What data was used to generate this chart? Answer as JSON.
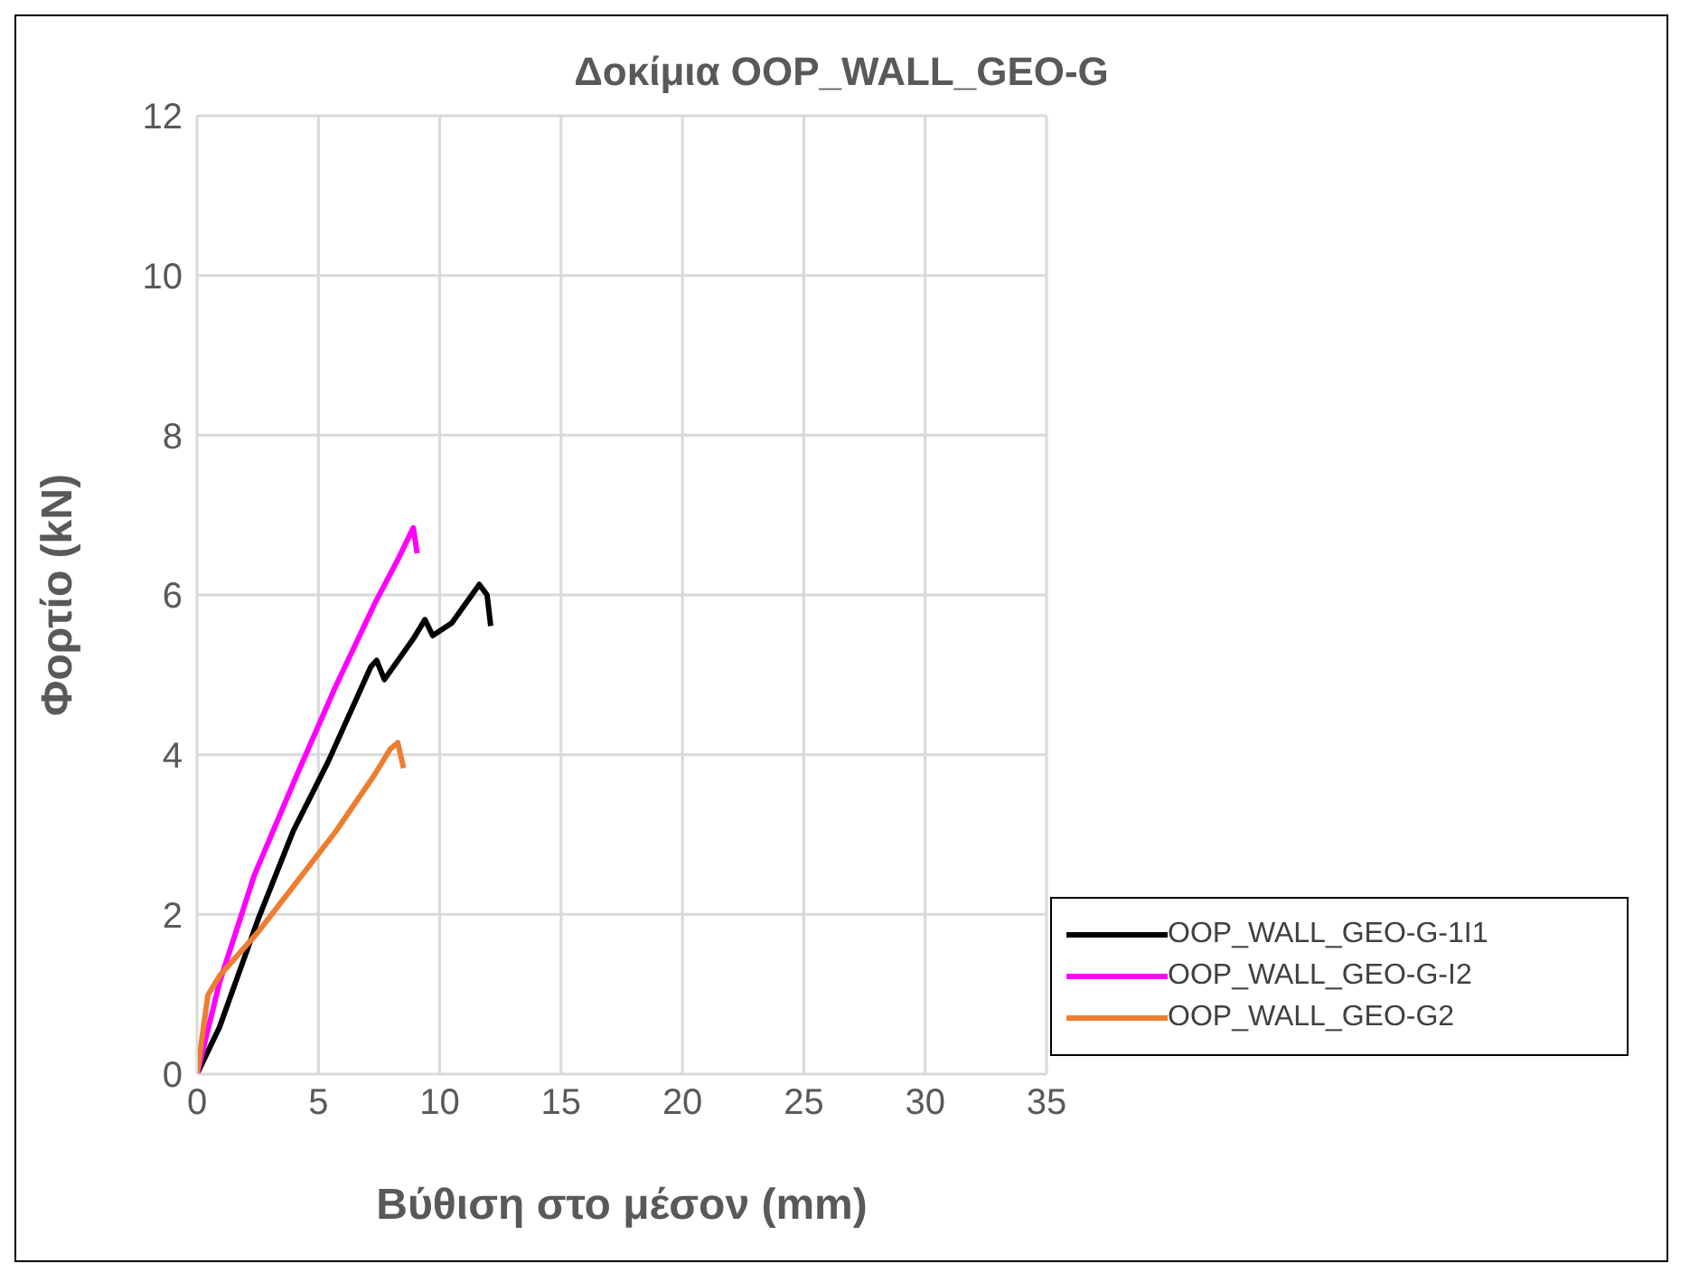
{
  "chart_data": {
    "type": "line",
    "title": "Δοκίμια OOP_WALL_GEO-G",
    "xlabel": "Βύθιση στο μέσον (mm)",
    "ylabel": "Φορτίο (kN)",
    "xlim": [
      0,
      35
    ],
    "xticks": [
      0,
      5,
      10,
      15,
      20,
      25,
      30,
      35
    ],
    "ylim": [
      0,
      12
    ],
    "yticks": [
      0,
      2,
      4,
      6,
      8,
      10,
      12
    ],
    "grid": true,
    "legend": "bottom right",
    "marker": "none",
    "line_style": "solid",
    "series": [
      {
        "name": "OOP_WALL_GEO-G-1I1",
        "color": "#000000",
        "x": [
          0,
          0.93,
          2.52,
          3.96,
          5.4,
          7.16,
          7.4,
          7.72,
          8.91,
          9.39,
          9.71,
          10.5,
          11.63,
          11.95,
          12.1
        ],
        "values": [
          0,
          0.59,
          1.94,
          3.04,
          3.91,
          5.1,
          5.18,
          4.94,
          5.45,
          5.69,
          5.49,
          5.65,
          6.13,
          6.0,
          5.61
        ]
      },
      {
        "name": "OOP_WALL_GEO-G-I2",
        "color": "#ff00ff",
        "x": [
          0,
          0.93,
          2.36,
          4.12,
          5.72,
          7.32,
          8.27,
          8.91,
          9.07
        ],
        "values": [
          0,
          1.15,
          2.49,
          3.75,
          4.86,
          5.89,
          6.44,
          6.84,
          6.52
        ]
      },
      {
        "name": "OOP_WALL_GEO-G2",
        "color": "#ed7d31",
        "x": [
          0,
          0.45,
          0.93,
          2.52,
          4.12,
          5.72,
          7.32,
          7.96,
          8.27,
          8.51
        ],
        "values": [
          0,
          0.99,
          1.23,
          1.78,
          2.41,
          3.04,
          3.75,
          4.07,
          4.15,
          3.83
        ]
      }
    ]
  }
}
